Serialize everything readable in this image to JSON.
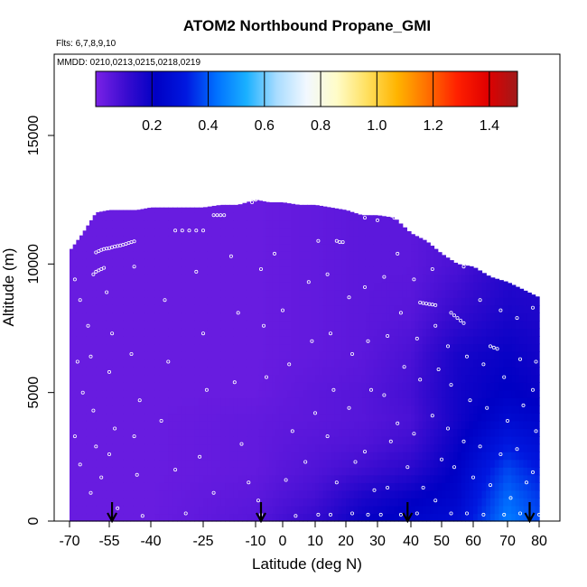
{
  "chart_data": {
    "type": "heatmap",
    "title": "ATOM2 Northbound Propane_GMI",
    "flights_label": "Flts: 6,7,8,9,10",
    "dates_label": "MMDD: 0210,0213,0215,0218,0219",
    "xlabel": "Latitude (deg N)",
    "ylabel": "Altitude (m)",
    "xlim": [
      -70,
      85
    ],
    "ylim": [
      0,
      17500
    ],
    "x_ticks": [
      -70,
      -55,
      -40,
      -25,
      -10,
      0,
      10,
      20,
      30,
      40,
      50,
      60,
      70,
      80
    ],
    "x_tick_labels": [
      "-70",
      "-55",
      "-40",
      "-25",
      "-10",
      "0",
      "10",
      "20",
      "30",
      "40",
      "50",
      "60",
      "70",
      "80"
    ],
    "y_ticks": [
      0,
      5000,
      10000,
      15000
    ],
    "y_tick_labels": [
      "0",
      "5000",
      "10000",
      "15000"
    ],
    "colorbar": {
      "min": 0.0,
      "max": 1.5,
      "ticks": [
        0.2,
        0.4,
        0.6,
        0.8,
        1.0,
        1.2,
        1.4
      ],
      "tick_labels": [
        "0.2",
        "0.4",
        "0.6",
        "0.8",
        "1.0",
        "1.2",
        "1.4"
      ],
      "stops": [
        "#7a22e6",
        "#3a0cd0",
        "#0000c4",
        "#0018e0",
        "#0070ff",
        "#1ab0ff",
        "#a8dcff",
        "#f2f8ff",
        "#fffcc8",
        "#ffe060",
        "#ffb400",
        "#ff7000",
        "#ff2000",
        "#e00000",
        "#a01a1a"
      ]
    },
    "field_latitudes": [
      -70,
      -65,
      -60,
      -55,
      -50,
      -45,
      -40,
      -35,
      -30,
      -25,
      -20,
      -15,
      -10,
      -5,
      0,
      5,
      10,
      15,
      20,
      25,
      30,
      35,
      40,
      45,
      50,
      55,
      60,
      65,
      70,
      75,
      80
    ],
    "field_top_altitude_m": [
      10500,
      11200,
      12000,
      12100,
      12100,
      12100,
      12200,
      12200,
      12200,
      12200,
      12300,
      12300,
      12500,
      12400,
      12400,
      12300,
      12300,
      12200,
      12100,
      11900,
      11900,
      11800,
      11200,
      10900,
      10400,
      10000,
      9900,
      9500,
      9300,
      9000,
      8700
    ],
    "field_profiles": [
      {
        "lat": -70,
        "values": [
          0.03,
          0.03,
          0.03,
          0.03,
          0.03,
          0.03,
          0.03,
          0.03,
          0.03
        ]
      },
      {
        "lat": -40,
        "values": [
          0.03,
          0.03,
          0.03,
          0.03,
          0.03,
          0.03,
          0.03,
          0.03,
          0.03
        ]
      },
      {
        "lat": -10,
        "values": [
          0.06,
          0.05,
          0.04,
          0.04,
          0.04,
          0.03,
          0.03,
          0.03,
          0.03
        ]
      },
      {
        "lat": 10,
        "values": [
          0.12,
          0.09,
          0.07,
          0.06,
          0.05,
          0.05,
          0.04,
          0.04,
          0.04
        ]
      },
      {
        "lat": 25,
        "values": [
          0.2,
          0.16,
          0.1,
          0.07,
          0.06,
          0.06,
          0.05,
          0.05,
          0.05
        ]
      },
      {
        "lat": 40,
        "values": [
          0.24,
          0.2,
          0.14,
          0.1,
          0.08,
          0.09,
          0.08,
          0.06,
          0.05
        ]
      },
      {
        "lat": 55,
        "values": [
          0.27,
          0.24,
          0.22,
          0.2,
          0.18,
          0.18,
          0.17,
          0.12,
          0.08
        ]
      },
      {
        "lat": 70,
        "values": [
          0.45,
          0.42,
          0.38,
          0.32,
          0.26,
          0.22,
          0.2,
          0.17,
          0.14
        ]
      },
      {
        "lat": 80,
        "values": [
          0.38,
          0.36,
          0.32,
          0.28,
          0.24,
          0.2,
          0.18,
          0.16,
          0.14
        ]
      }
    ],
    "profile_altitudes_m": [
      0,
      1000,
      2000,
      3000,
      4000,
      5000,
      6500,
      8000,
      10000
    ],
    "flight_marker_latitudes": [
      -54,
      -8,
      39,
      77
    ],
    "observation_points": [
      {
        "lat": -60,
        "alt": 10450
      },
      {
        "lat": -59,
        "alt": 10500
      },
      {
        "lat": -58,
        "alt": 10550
      },
      {
        "lat": -57,
        "alt": 10580
      },
      {
        "lat": -56,
        "alt": 10600
      },
      {
        "lat": -55,
        "alt": 10620
      },
      {
        "lat": -54,
        "alt": 10650
      },
      {
        "lat": -53,
        "alt": 10680
      },
      {
        "lat": -52,
        "alt": 10700
      },
      {
        "lat": -51,
        "alt": 10720
      },
      {
        "lat": -50,
        "alt": 10750
      },
      {
        "lat": -49,
        "alt": 10780
      },
      {
        "lat": -48,
        "alt": 10820
      },
      {
        "lat": -47,
        "alt": 10850
      },
      {
        "lat": -46,
        "alt": 10880
      },
      {
        "lat": -61,
        "alt": 9600
      },
      {
        "lat": -60,
        "alt": 9700
      },
      {
        "lat": -59,
        "alt": 9750
      },
      {
        "lat": -58,
        "alt": 9800
      },
      {
        "lat": -57,
        "alt": 9850
      },
      {
        "lat": -33,
        "alt": 11300
      },
      {
        "lat": -31,
        "alt": 11300
      },
      {
        "lat": -29,
        "alt": 11300
      },
      {
        "lat": -27,
        "alt": 11300
      },
      {
        "lat": -25,
        "alt": 11300
      },
      {
        "lat": -22,
        "alt": 11900
      },
      {
        "lat": -21,
        "alt": 11900
      },
      {
        "lat": -20,
        "alt": 11900
      },
      {
        "lat": -19,
        "alt": 11900
      },
      {
        "lat": -64,
        "alt": 11800
      },
      {
        "lat": -63,
        "alt": 11850
      },
      {
        "lat": -11,
        "alt": 12400
      },
      {
        "lat": -10,
        "alt": 12500
      },
      {
        "lat": 11,
        "alt": 10900
      },
      {
        "lat": 17,
        "alt": 10900
      },
      {
        "lat": 18,
        "alt": 10850
      },
      {
        "lat": 19,
        "alt": 10850
      },
      {
        "lat": 26,
        "alt": 11800
      },
      {
        "lat": 30,
        "alt": 11700
      },
      {
        "lat": 35,
        "alt": 11800
      },
      {
        "lat": 39,
        "alt": 11800
      },
      {
        "lat": 41,
        "alt": 11500
      },
      {
        "lat": 43,
        "alt": 8500
      },
      {
        "lat": 44,
        "alt": 8480
      },
      {
        "lat": 45,
        "alt": 8460
      },
      {
        "lat": 46,
        "alt": 8440
      },
      {
        "lat": 47,
        "alt": 8420
      },
      {
        "lat": 48,
        "alt": 8400
      },
      {
        "lat": 53,
        "alt": 8100
      },
      {
        "lat": 54,
        "alt": 8000
      },
      {
        "lat": 55,
        "alt": 7900
      },
      {
        "lat": 56,
        "alt": 7800
      },
      {
        "lat": 57,
        "alt": 7700
      },
      {
        "lat": 65,
        "alt": 6800
      },
      {
        "lat": 66,
        "alt": 6750
      },
      {
        "lat": 67,
        "alt": 6700
      },
      {
        "lat": -68,
        "alt": 9400
      },
      {
        "lat": -66,
        "alt": 8600
      },
      {
        "lat": -67,
        "alt": 6200
      },
      {
        "lat": -65,
        "alt": 5000
      },
      {
        "lat": -68,
        "alt": 3300
      },
      {
        "lat": -66,
        "alt": 2200
      },
      {
        "lat": -63,
        "alt": 7600
      },
      {
        "lat": -62,
        "alt": 6400
      },
      {
        "lat": -61,
        "alt": 4300
      },
      {
        "lat": -60,
        "alt": 2900
      },
      {
        "lat": -58,
        "alt": 1700
      },
      {
        "lat": -62,
        "alt": 1100
      },
      {
        "lat": -56,
        "alt": 8900
      },
      {
        "lat": -54,
        "alt": 7300
      },
      {
        "lat": -55,
        "alt": 5800
      },
      {
        "lat": -53,
        "alt": 3600
      },
      {
        "lat": -55,
        "alt": 2600
      },
      {
        "lat": -52,
        "alt": 500
      },
      {
        "lat": -46,
        "alt": 9900
      },
      {
        "lat": -47,
        "alt": 6500
      },
      {
        "lat": -44,
        "alt": 4700
      },
      {
        "lat": -46,
        "alt": 3300
      },
      {
        "lat": -45,
        "alt": 1800
      },
      {
        "lat": -43,
        "alt": 200
      },
      {
        "lat": -36,
        "alt": 8600
      },
      {
        "lat": -35,
        "alt": 6200
      },
      {
        "lat": -37,
        "alt": 3900
      },
      {
        "lat": -33,
        "alt": 2000
      },
      {
        "lat": -30,
        "alt": 300
      },
      {
        "lat": -27,
        "alt": 9700
      },
      {
        "lat": -25,
        "alt": 7300
      },
      {
        "lat": -24,
        "alt": 5100
      },
      {
        "lat": -26,
        "alt": 2500
      },
      {
        "lat": -22,
        "alt": 1100
      },
      {
        "lat": -17,
        "alt": 10300
      },
      {
        "lat": -15,
        "alt": 8100
      },
      {
        "lat": -16,
        "alt": 5400
      },
      {
        "lat": -14,
        "alt": 3000
      },
      {
        "lat": -12,
        "alt": 1500
      },
      {
        "lat": -8,
        "alt": 9800
      },
      {
        "lat": -7,
        "alt": 7600
      },
      {
        "lat": -6,
        "alt": 5600
      },
      {
        "lat": -9,
        "alt": 800
      },
      {
        "lat": -8,
        "alt": 250
      },
      {
        "lat": -3,
        "alt": 10400
      },
      {
        "lat": 0,
        "alt": 8200
      },
      {
        "lat": 2,
        "alt": 6100
      },
      {
        "lat": 3,
        "alt": 3500
      },
      {
        "lat": 1,
        "alt": 1600
      },
      {
        "lat": 4,
        "alt": 200
      },
      {
        "lat": 8,
        "alt": 9300
      },
      {
        "lat": 9,
        "alt": 7000
      },
      {
        "lat": 10,
        "alt": 4200
      },
      {
        "lat": 7,
        "alt": 2300
      },
      {
        "lat": 11,
        "alt": 250
      },
      {
        "lat": 14,
        "alt": 9600
      },
      {
        "lat": 15,
        "alt": 7300
      },
      {
        "lat": 16,
        "alt": 5100
      },
      {
        "lat": 14,
        "alt": 3300
      },
      {
        "lat": 17,
        "alt": 1500
      },
      {
        "lat": 15,
        "alt": 250
      },
      {
        "lat": 21,
        "alt": 8700
      },
      {
        "lat": 22,
        "alt": 6500
      },
      {
        "lat": 21,
        "alt": 4400
      },
      {
        "lat": 23,
        "alt": 2300
      },
      {
        "lat": 22,
        "alt": 300
      },
      {
        "lat": 26,
        "alt": 9100
      },
      {
        "lat": 27,
        "alt": 7000
      },
      {
        "lat": 28,
        "alt": 5100
      },
      {
        "lat": 26,
        "alt": 2700
      },
      {
        "lat": 29,
        "alt": 1200
      },
      {
        "lat": 27,
        "alt": 250
      },
      {
        "lat": 32,
        "alt": 9500
      },
      {
        "lat": 33,
        "alt": 7200
      },
      {
        "lat": 32,
        "alt": 4900
      },
      {
        "lat": 34,
        "alt": 3100
      },
      {
        "lat": 33,
        "alt": 1300
      },
      {
        "lat": 31,
        "alt": 250
      },
      {
        "lat": 36,
        "alt": 10400
      },
      {
        "lat": 37,
        "alt": 8100
      },
      {
        "lat": 38,
        "alt": 6000
      },
      {
        "lat": 36,
        "alt": 3800
      },
      {
        "lat": 39,
        "alt": 2100
      },
      {
        "lat": 37,
        "alt": 250
      },
      {
        "lat": 41,
        "alt": 9400
      },
      {
        "lat": 42,
        "alt": 7100
      },
      {
        "lat": 43,
        "alt": 5500
      },
      {
        "lat": 41,
        "alt": 3400
      },
      {
        "lat": 44,
        "alt": 1300
      },
      {
        "lat": 42,
        "alt": 300
      },
      {
        "lat": 47,
        "alt": 9800
      },
      {
        "lat": 48,
        "alt": 7600
      },
      {
        "lat": 49,
        "alt": 5900
      },
      {
        "lat": 47,
        "alt": 4100
      },
      {
        "lat": 50,
        "alt": 2400
      },
      {
        "lat": 48,
        "alt": 800
      },
      {
        "lat": 52,
        "alt": 6800
      },
      {
        "lat": 53,
        "alt": 5300
      },
      {
        "lat": 52,
        "alt": 3600
      },
      {
        "lat": 54,
        "alt": 2100
      },
      {
        "lat": 53,
        "alt": 300
      },
      {
        "lat": 57,
        "alt": 9900
      },
      {
        "lat": 58,
        "alt": 6400
      },
      {
        "lat": 59,
        "alt": 4700
      },
      {
        "lat": 57,
        "alt": 3100
      },
      {
        "lat": 60,
        "alt": 1700
      },
      {
        "lat": 58,
        "alt": 300
      },
      {
        "lat": 62,
        "alt": 8600
      },
      {
        "lat": 63,
        "alt": 6100
      },
      {
        "lat": 64,
        "alt": 4400
      },
      {
        "lat": 62,
        "alt": 2900
      },
      {
        "lat": 65,
        "alt": 1400
      },
      {
        "lat": 63,
        "alt": 250
      },
      {
        "lat": 68,
        "alt": 8200
      },
      {
        "lat": 69,
        "alt": 5600
      },
      {
        "lat": 70,
        "alt": 3900
      },
      {
        "lat": 68,
        "alt": 2600
      },
      {
        "lat": 71,
        "alt": 900
      },
      {
        "lat": 69,
        "alt": 250
      },
      {
        "lat": 73,
        "alt": 7900
      },
      {
        "lat": 74,
        "alt": 6300
      },
      {
        "lat": 75,
        "alt": 4500
      },
      {
        "lat": 73,
        "alt": 2800
      },
      {
        "lat": 76,
        "alt": 1500
      },
      {
        "lat": 74,
        "alt": 300
      },
      {
        "lat": 78,
        "alt": 8300
      },
      {
        "lat": 79,
        "alt": 6200
      },
      {
        "lat": 78,
        "alt": 5100
      },
      {
        "lat": 79,
        "alt": 3500
      },
      {
        "lat": 78,
        "alt": 1900
      },
      {
        "lat": 80,
        "alt": 250
      }
    ]
  }
}
